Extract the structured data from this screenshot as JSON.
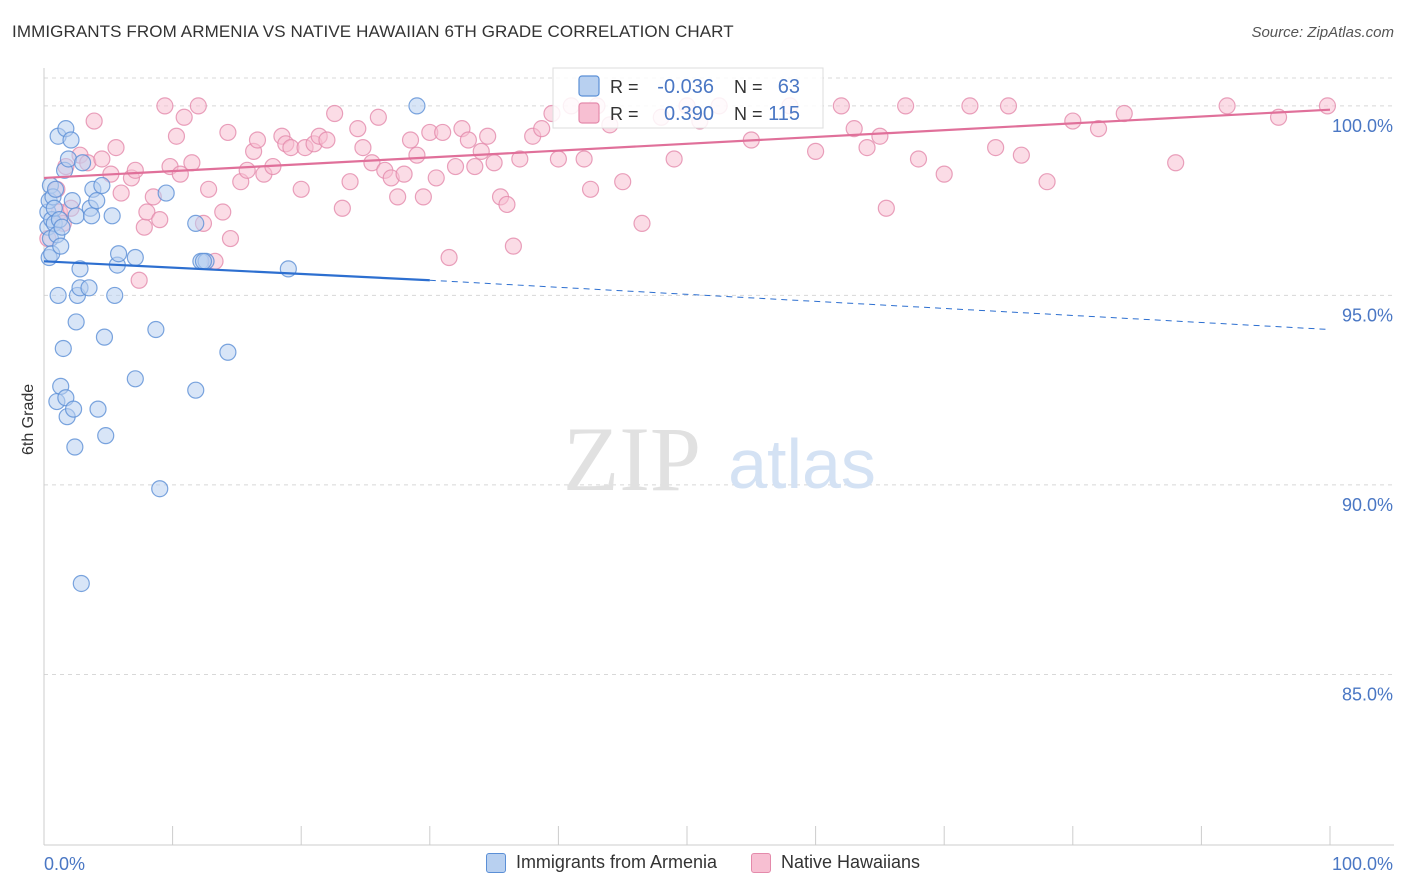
{
  "title": "IMMIGRANTS FROM ARMENIA VS NATIVE HAWAIIAN 6TH GRADE CORRELATION CHART",
  "source": "Source: ZipAtlas.com",
  "watermark": {
    "zip": "ZIP",
    "atlas": "atlas"
  },
  "colors": {
    "blue_fill": "#b8d0f0",
    "blue_stroke": "#5b8fd6",
    "blue_line": "#2d6fd0",
    "pink_fill": "#f7bfd2",
    "pink_stroke": "#e48aab",
    "pink_line": "#e0709a",
    "axis_text": "#4a77c4",
    "grid": "#d8d8d8"
  },
  "chart_data": {
    "type": "scatter",
    "ylabel": "6th Grade",
    "xlim": [
      0,
      100
    ],
    "ylim": [
      80.5,
      101.0
    ],
    "x_tick_labels": [
      "0.0%",
      "100.0%"
    ],
    "y_ticks": [
      85.0,
      90.0,
      95.0,
      100.0
    ],
    "y_tick_labels": [
      "85.0%",
      "90.0%",
      "95.0%",
      "100.0%"
    ],
    "legend": [
      {
        "name": "Immigrants from Armenia",
        "r_label": "R = ",
        "r_value": "-0.036",
        "n_label": "N = ",
        "n_value": "63"
      },
      {
        "name": "Native Hawaiians",
        "r_label": "R = ",
        "r_value": "0.390",
        "n_label": "N = ",
        "n_value": "115"
      }
    ],
    "series": [
      {
        "name": "Immigrants from Armenia",
        "trend": {
          "x_start": 0,
          "y_start": 95.9,
          "x_solid_end": 30,
          "y_solid_end": 95.4,
          "x_end": 100,
          "y_end": 94.1
        },
        "points": [
          [
            0.3,
            97.2
          ],
          [
            0.3,
            96.8
          ],
          [
            0.4,
            96.0
          ],
          [
            0.4,
            97.5
          ],
          [
            0.5,
            97.9
          ],
          [
            0.5,
            96.5
          ],
          [
            0.6,
            97.0
          ],
          [
            0.6,
            96.1
          ],
          [
            0.7,
            97.6
          ],
          [
            0.8,
            96.9
          ],
          [
            0.8,
            97.3
          ],
          [
            0.9,
            97.8
          ],
          [
            1.0,
            96.6
          ],
          [
            1.0,
            92.2
          ],
          [
            1.1,
            99.2
          ],
          [
            1.1,
            95.0
          ],
          [
            1.2,
            97.0
          ],
          [
            1.3,
            96.3
          ],
          [
            1.3,
            92.6
          ],
          [
            1.4,
            96.8
          ],
          [
            1.5,
            93.6
          ],
          [
            1.6,
            98.3
          ],
          [
            1.7,
            99.4
          ],
          [
            1.7,
            92.3
          ],
          [
            1.8,
            91.8
          ],
          [
            1.9,
            98.6
          ],
          [
            2.1,
            99.1
          ],
          [
            2.2,
            97.5
          ],
          [
            2.3,
            92.0
          ],
          [
            2.4,
            91.0
          ],
          [
            2.5,
            97.1
          ],
          [
            2.6,
            95.0
          ],
          [
            2.5,
            94.3
          ],
          [
            2.8,
            95.2
          ],
          [
            2.8,
            95.7
          ],
          [
            3.0,
            98.5
          ],
          [
            2.9,
            87.4
          ],
          [
            3.6,
            97.3
          ],
          [
            3.5,
            95.2
          ],
          [
            3.7,
            97.1
          ],
          [
            3.8,
            97.8
          ],
          [
            4.1,
            97.5
          ],
          [
            4.2,
            92.0
          ],
          [
            4.5,
            97.9
          ],
          [
            4.7,
            93.9
          ],
          [
            4.8,
            91.3
          ],
          [
            5.3,
            97.1
          ],
          [
            5.5,
            95.0
          ],
          [
            5.7,
            95.8
          ],
          [
            5.8,
            96.1
          ],
          [
            7.1,
            96.0
          ],
          [
            7.1,
            92.8
          ],
          [
            8.7,
            94.1
          ],
          [
            9.0,
            89.9
          ],
          [
            9.5,
            97.7
          ],
          [
            11.8,
            96.9
          ],
          [
            11.8,
            92.5
          ],
          [
            12.2,
            95.9
          ],
          [
            12.6,
            95.9
          ],
          [
            14.3,
            93.5
          ],
          [
            19.0,
            95.7
          ],
          [
            29.0,
            100.0
          ],
          [
            12.4,
            95.9
          ]
        ]
      },
      {
        "name": "Native Hawaiians",
        "trend": {
          "x_start": 0,
          "y_start": 98.1,
          "x_end": 100,
          "y_end": 99.9
        },
        "points": [
          [
            0.3,
            96.5
          ],
          [
            1.0,
            97.8
          ],
          [
            1.2,
            97.2
          ],
          [
            1.5,
            96.9
          ],
          [
            1.7,
            98.4
          ],
          [
            2.1,
            97.3
          ],
          [
            2.8,
            98.7
          ],
          [
            3.4,
            98.5
          ],
          [
            3.9,
            99.6
          ],
          [
            4.5,
            98.6
          ],
          [
            5.2,
            98.2
          ],
          [
            5.6,
            98.9
          ],
          [
            6.0,
            97.7
          ],
          [
            6.8,
            98.1
          ],
          [
            7.1,
            98.3
          ],
          [
            7.4,
            95.4
          ],
          [
            7.8,
            96.8
          ],
          [
            8.0,
            97.2
          ],
          [
            8.5,
            97.6
          ],
          [
            9.0,
            97.0
          ],
          [
            9.4,
            100.0
          ],
          [
            9.8,
            98.4
          ],
          [
            10.3,
            99.2
          ],
          [
            10.6,
            98.2
          ],
          [
            10.9,
            99.7
          ],
          [
            11.5,
            98.5
          ],
          [
            12.0,
            100.0
          ],
          [
            12.4,
            96.9
          ],
          [
            12.8,
            97.8
          ],
          [
            13.3,
            95.9
          ],
          [
            13.9,
            97.2
          ],
          [
            14.3,
            99.3
          ],
          [
            14.5,
            96.5
          ],
          [
            15.3,
            98.0
          ],
          [
            15.8,
            98.3
          ],
          [
            16.3,
            98.8
          ],
          [
            16.6,
            99.1
          ],
          [
            17.1,
            98.2
          ],
          [
            17.8,
            98.4
          ],
          [
            18.5,
            99.2
          ],
          [
            18.8,
            99.0
          ],
          [
            19.2,
            98.9
          ],
          [
            20.0,
            97.8
          ],
          [
            20.3,
            98.9
          ],
          [
            21.0,
            99.0
          ],
          [
            21.4,
            99.2
          ],
          [
            22.0,
            99.1
          ],
          [
            22.6,
            99.8
          ],
          [
            23.2,
            97.3
          ],
          [
            23.8,
            98.0
          ],
          [
            24.4,
            99.4
          ],
          [
            24.8,
            98.9
          ],
          [
            25.5,
            98.5
          ],
          [
            26.0,
            99.7
          ],
          [
            26.5,
            98.3
          ],
          [
            27.0,
            98.1
          ],
          [
            27.5,
            97.6
          ],
          [
            28.0,
            98.2
          ],
          [
            28.5,
            99.1
          ],
          [
            29.0,
            98.7
          ],
          [
            29.5,
            97.6
          ],
          [
            30.0,
            99.3
          ],
          [
            30.5,
            98.1
          ],
          [
            31.0,
            99.3
          ],
          [
            31.5,
            96.0
          ],
          [
            32.0,
            98.4
          ],
          [
            32.5,
            99.4
          ],
          [
            33.0,
            99.1
          ],
          [
            33.5,
            98.4
          ],
          [
            34.0,
            98.8
          ],
          [
            34.5,
            99.2
          ],
          [
            35.0,
            98.5
          ],
          [
            35.5,
            97.6
          ],
          [
            36.0,
            97.4
          ],
          [
            36.5,
            96.3
          ],
          [
            37.0,
            98.6
          ],
          [
            38.0,
            99.2
          ],
          [
            38.7,
            99.4
          ],
          [
            39.5,
            99.8
          ],
          [
            40.0,
            98.6
          ],
          [
            41.0,
            100.0
          ],
          [
            42.0,
            98.6
          ],
          [
            42.5,
            97.8
          ],
          [
            43.0,
            100.0
          ],
          [
            45.0,
            98.0
          ],
          [
            46.5,
            96.9
          ],
          [
            48.0,
            99.7
          ],
          [
            49.0,
            98.6
          ],
          [
            50.0,
            100.0
          ],
          [
            51.0,
            99.6
          ],
          [
            52.5,
            100.0
          ],
          [
            55.0,
            99.1
          ],
          [
            58.0,
            100.0
          ],
          [
            60.0,
            98.8
          ],
          [
            62.0,
            100.0
          ],
          [
            63.0,
            99.4
          ],
          [
            64.0,
            98.9
          ],
          [
            65.0,
            99.2
          ],
          [
            65.5,
            97.3
          ],
          [
            67.0,
            100.0
          ],
          [
            68.0,
            98.6
          ],
          [
            70.0,
            98.2
          ],
          [
            72.0,
            100.0
          ],
          [
            74.0,
            98.9
          ],
          [
            75.0,
            100.0
          ],
          [
            76.0,
            98.7
          ],
          [
            78.0,
            98.0
          ],
          [
            80.0,
            99.6
          ],
          [
            82.0,
            99.4
          ],
          [
            84.0,
            99.8
          ],
          [
            88.0,
            98.5
          ],
          [
            92.0,
            100.0
          ],
          [
            96.0,
            99.7
          ],
          [
            99.8,
            100.0
          ],
          [
            44.0,
            99.5
          ]
        ]
      }
    ]
  }
}
